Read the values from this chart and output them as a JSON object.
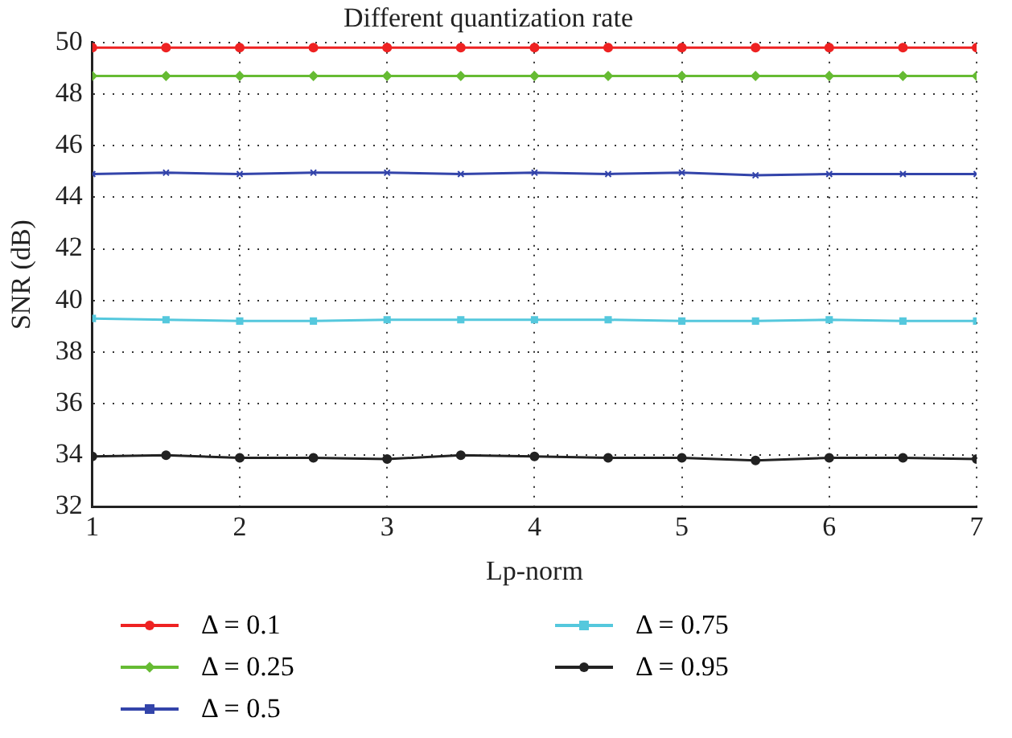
{
  "chart_data": {
    "type": "line",
    "title": "Different quantization rate",
    "xlabel": "Lp-norm",
    "ylabel": "SNR (dB)",
    "x": [
      1,
      1.5,
      2,
      2.5,
      3,
      3.5,
      4,
      4.5,
      5,
      5.5,
      6,
      6.5,
      7
    ],
    "xlim": [
      1,
      7
    ],
    "xticks": [
      1,
      2,
      3,
      4,
      5,
      6,
      7
    ],
    "ylim": [
      32,
      50
    ],
    "yticks": [
      32,
      34,
      36,
      38,
      40,
      42,
      44,
      46,
      48,
      50
    ],
    "grid": true,
    "legend": "bottom",
    "line_style": "solid",
    "series": [
      {
        "name": "Δ = 0.1",
        "color": "#ee2222",
        "marker": "circle",
        "values": [
          49.8,
          49.8,
          49.8,
          49.8,
          49.8,
          49.8,
          49.8,
          49.8,
          49.8,
          49.8,
          49.8,
          49.8,
          49.8
        ]
      },
      {
        "name": "Δ = 0.25",
        "color": "#66bb33",
        "marker": "diamond",
        "values": [
          48.7,
          48.7,
          48.7,
          48.7,
          48.7,
          48.7,
          48.7,
          48.7,
          48.7,
          48.7,
          48.7,
          48.7,
          48.7
        ]
      },
      {
        "name": "Δ = 0.5",
        "color": "#3344aa",
        "marker": "cross",
        "values": [
          44.9,
          44.95,
          44.9,
          44.95,
          44.95,
          44.9,
          44.95,
          44.9,
          44.95,
          44.85,
          44.9,
          44.9,
          44.9
        ]
      },
      {
        "name": "Δ = 0.75",
        "color": "#55c8dd",
        "marker": "square",
        "values": [
          39.3,
          39.25,
          39.2,
          39.2,
          39.25,
          39.25,
          39.25,
          39.25,
          39.2,
          39.2,
          39.25,
          39.2,
          39.2
        ]
      },
      {
        "name": "Δ = 0.95",
        "color": "#222222",
        "marker": "circle",
        "values": [
          33.95,
          34.0,
          33.9,
          33.9,
          33.85,
          34.0,
          33.95,
          33.9,
          33.9,
          33.8,
          33.9,
          33.9,
          33.85
        ]
      }
    ]
  }
}
